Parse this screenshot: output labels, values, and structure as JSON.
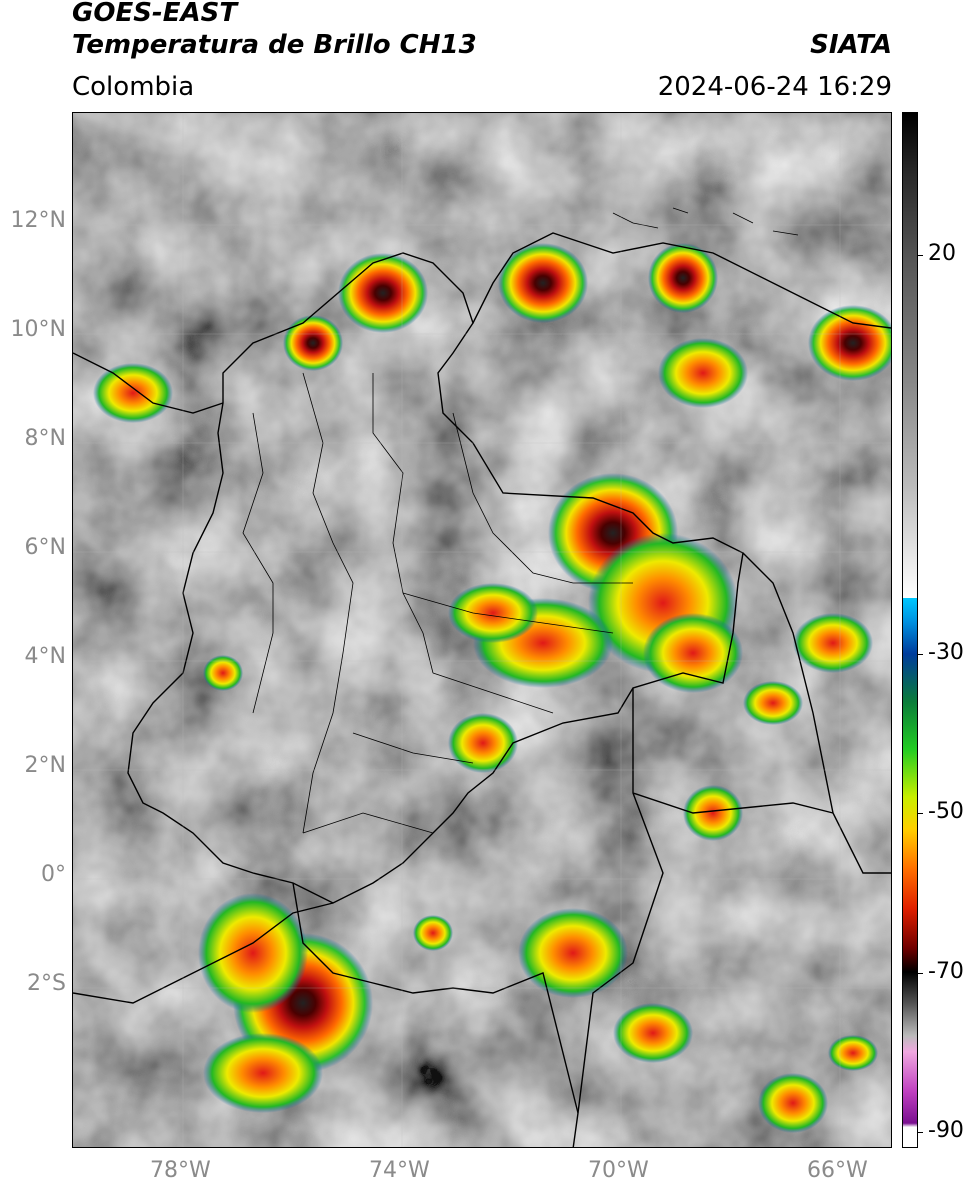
{
  "header": {
    "satellite": "GOES-EAST",
    "product": "Temperatura de Brillo CH13",
    "region": "Colombia",
    "agency": "SIATA",
    "datetime": "2024-06-24 16:29"
  },
  "map": {
    "lat_labels": [
      "12°N",
      "10°N",
      "8°N",
      "6°N",
      "4°N",
      "2°N",
      "0°",
      "2°S"
    ],
    "lon_labels": [
      "78°W",
      "74°W",
      "70°W",
      "66°W"
    ],
    "lat_range": [
      -5,
      14
    ],
    "lon_range": [
      -79.6,
      -64.6
    ]
  },
  "colorbar": {
    "labels": [
      "20",
      "-30",
      "-50",
      "-70",
      "-90"
    ],
    "values": [
      20,
      -30,
      -50,
      -70,
      -90
    ],
    "range": [
      -92,
      38
    ]
  }
}
